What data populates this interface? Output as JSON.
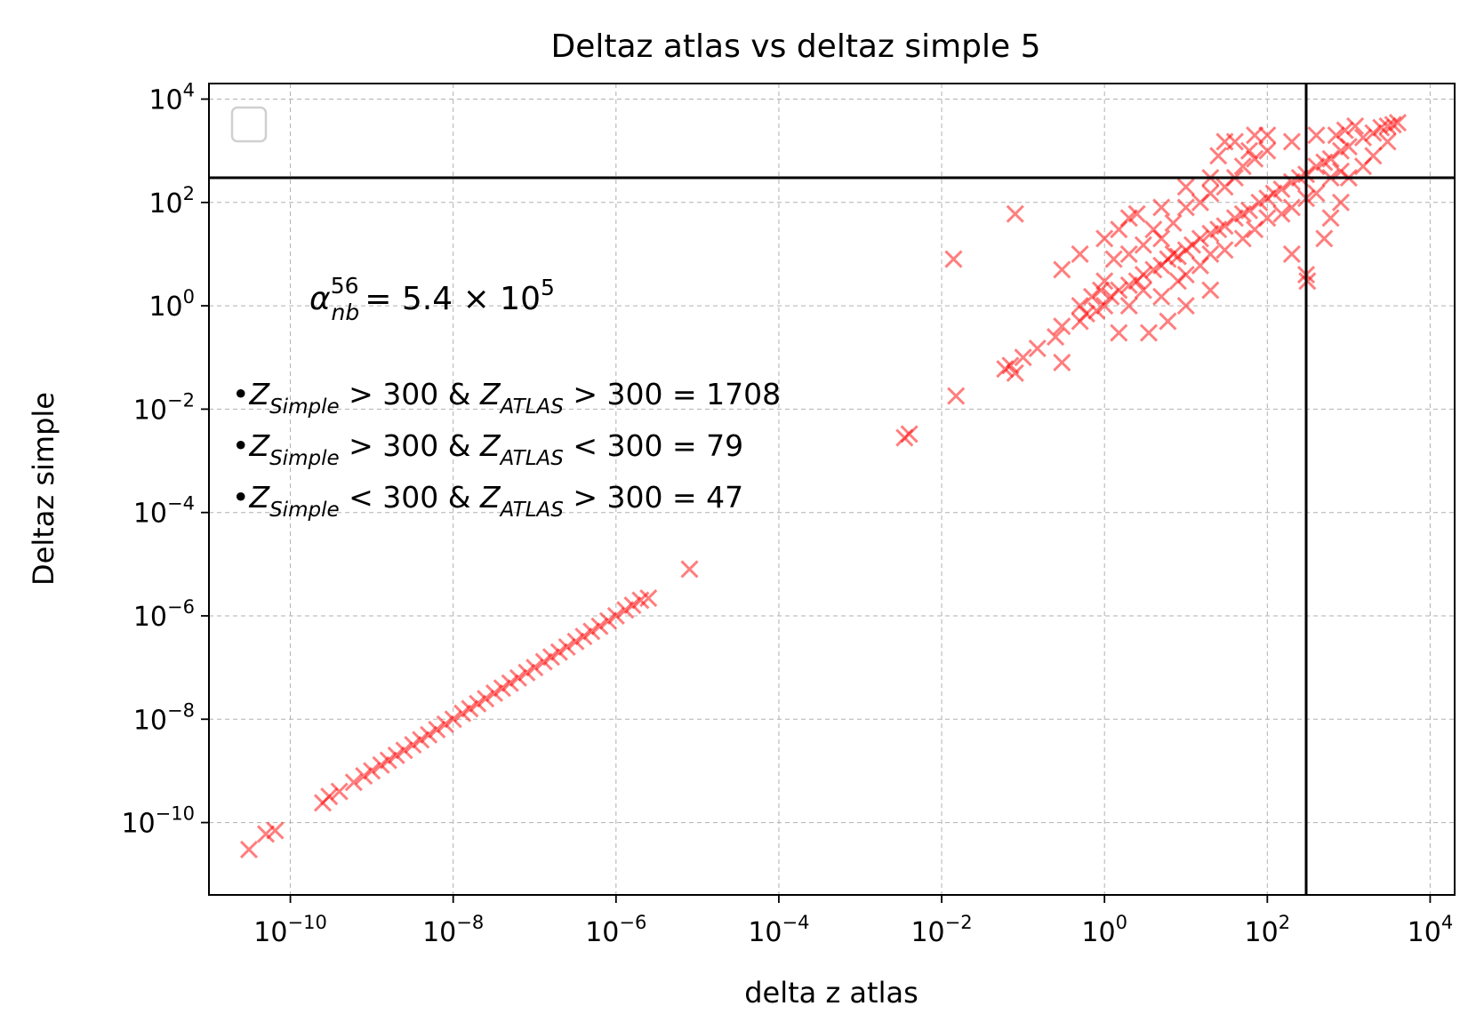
{
  "chart_data": {
    "type": "scatter",
    "title": "Deltaz atlas vs deltaz simple 5",
    "xlabel": "delta z atlas",
    "ylabel": "Deltaz simple",
    "xscale": "log",
    "yscale": "log",
    "xlim": [
      1e-11,
      20000
    ],
    "ylim": [
      3.98e-12,
      20000
    ],
    "x_tick_exponents": [
      -10,
      -8,
      -6,
      -4,
      -2,
      0,
      2,
      4
    ],
    "y_tick_exponents": [
      -10,
      -8,
      -6,
      -4,
      -2,
      0,
      2,
      4
    ],
    "x_tick_labels": [
      "10^-10",
      "10^-8",
      "10^-6",
      "10^-4",
      "10^-2",
      "10^0",
      "10^2",
      "10^4"
    ],
    "y_tick_labels": [
      "10^-10",
      "10^-8",
      "10^-6",
      "10^-4",
      "10^-2",
      "10^0",
      "10^2",
      "10^4"
    ],
    "grid": true,
    "legend": "top-left (empty)",
    "marker": "x",
    "marker_color": "#ff0000",
    "marker_alpha": 0.5,
    "reference_lines": {
      "horizontal_y": 300,
      "vertical_x": 300,
      "color": "#000000"
    },
    "annotations": {
      "alpha": {
        "symbol": "α",
        "sup": "56",
        "sub": "nb",
        "value_text": "= 5.4 × 10",
        "exp": "5"
      },
      "counts": [
        {
          "bullet": "•",
          "zA": "Z",
          "zA_sub": "Simple",
          "op1": ">",
          "v1": "300",
          "amp": "&",
          "zB": "Z",
          "zB_sub": "ATLAS",
          "op2": ">",
          "v2": "300",
          "eq": "=",
          "count": "1708"
        },
        {
          "bullet": "•",
          "zA": "Z",
          "zA_sub": "Simple",
          "op1": ">",
          "v1": "300",
          "amp": "&",
          "zB": "Z",
          "zB_sub": "ATLAS",
          "op2": "<",
          "v2": "300",
          "eq": "=",
          "count": "79"
        },
        {
          "bullet": "•",
          "zA": "Z",
          "zA_sub": "Simple",
          "op1": "<",
          "v1": "300",
          "amp": "&",
          "zB": "Z",
          "zB_sub": "ATLAS",
          "op2": ">",
          "v2": "300",
          "eq": "=",
          "count": "47"
        }
      ]
    },
    "series": [
      {
        "marker": "x",
        "points": [
          [
            3.1e-11,
            3e-11
          ],
          [
            5e-11,
            6e-11
          ],
          [
            6.5e-11,
            7e-11
          ],
          [
            2.5e-10,
            2.4e-10
          ],
          [
            3e-10,
            3.2e-10
          ],
          [
            4e-10,
            4e-10
          ],
          [
            6e-10,
            6e-10
          ],
          [
            8e-10,
            8e-10
          ],
          [
            1e-09,
            1e-09
          ],
          [
            1.3e-09,
            1.3e-09
          ],
          [
            1.6e-09,
            1.6e-09
          ],
          [
            2e-09,
            2e-09
          ],
          [
            2.5e-09,
            2.5e-09
          ],
          [
            3.2e-09,
            3.2e-09
          ],
          [
            4e-09,
            4e-09
          ],
          [
            5e-09,
            5e-09
          ],
          [
            6.3e-09,
            6.3e-09
          ],
          [
            8e-09,
            8e-09
          ],
          [
            1e-08,
            1e-08
          ],
          [
            1.3e-08,
            1.3e-08
          ],
          [
            1.6e-08,
            1.6e-08
          ],
          [
            2e-08,
            2e-08
          ],
          [
            2.5e-08,
            2.5e-08
          ],
          [
            3.2e-08,
            3.2e-08
          ],
          [
            4e-08,
            4e-08
          ],
          [
            5e-08,
            5e-08
          ],
          [
            6.3e-08,
            6.3e-08
          ],
          [
            8e-08,
            8e-08
          ],
          [
            1e-07,
            1e-07
          ],
          [
            1.3e-07,
            1.3e-07
          ],
          [
            1.6e-07,
            1.6e-07
          ],
          [
            2e-07,
            2e-07
          ],
          [
            2.5e-07,
            2.5e-07
          ],
          [
            3.2e-07,
            3.2e-07
          ],
          [
            4e-07,
            4e-07
          ],
          [
            5e-07,
            5e-07
          ],
          [
            6.3e-07,
            6.3e-07
          ],
          [
            8e-07,
            8e-07
          ],
          [
            1e-06,
            1e-06
          ],
          [
            1.3e-06,
            1.3e-06
          ],
          [
            1.6e-06,
            1.6e-06
          ],
          [
            2e-06,
            2e-06
          ],
          [
            2.5e-06,
            2.2e-06
          ],
          [
            8e-06,
            8e-06
          ],
          [
            0.0035,
            0.0028
          ],
          [
            0.004,
            0.0033
          ],
          [
            0.015,
            0.018
          ],
          [
            0.014,
            8.0
          ],
          [
            0.06,
            0.06
          ],
          [
            0.07,
            0.07
          ],
          [
            0.08,
            0.05
          ],
          [
            0.1,
            0.1
          ],
          [
            0.15,
            0.15
          ],
          [
            0.08,
            60
          ],
          [
            0.25,
            0.25
          ],
          [
            0.3,
            0.4
          ],
          [
            0.5,
            0.5
          ],
          [
            0.6,
            0.7
          ],
          [
            0.8,
            0.8
          ],
          [
            1.0,
            1.0
          ],
          [
            1.2,
            1.5
          ],
          [
            1.5,
            2.0
          ],
          [
            2.0,
            2.5
          ],
          [
            2.5,
            3.0
          ],
          [
            3.0,
            4.0
          ],
          [
            3.5,
            0.3
          ],
          [
            4.0,
            5.0
          ],
          [
            5.0,
            6.0
          ],
          [
            6.0,
            8.0
          ],
          [
            7.0,
            10
          ],
          [
            8.0,
            9.0
          ],
          [
            10,
            12
          ],
          [
            12,
            15
          ],
          [
            15,
            20
          ],
          [
            20,
            25
          ],
          [
            25,
            30
          ],
          [
            30,
            35
          ],
          [
            40,
            50
          ],
          [
            50,
            60
          ],
          [
            60,
            70
          ],
          [
            80,
            100
          ],
          [
            100,
            120
          ],
          [
            120,
            150
          ],
          [
            150,
            180
          ],
          [
            200,
            250
          ],
          [
            250,
            300
          ],
          [
            300,
            350
          ],
          [
            400,
            500
          ],
          [
            500,
            600
          ],
          [
            600,
            700
          ],
          [
            800,
            1000
          ],
          [
            1000,
            1200
          ],
          [
            1500,
            1800
          ],
          [
            2000,
            2200
          ],
          [
            2500,
            2800
          ],
          [
            3000,
            3000
          ],
          [
            3500,
            3200
          ],
          [
            4000,
            3500
          ],
          [
            1.0,
            3.0
          ],
          [
            1.3,
            8.0
          ],
          [
            2.0,
            10
          ],
          [
            3.0,
            15
          ],
          [
            4.0,
            30
          ],
          [
            5.0,
            20
          ],
          [
            7.0,
            40
          ],
          [
            10,
            80
          ],
          [
            15,
            100
          ],
          [
            20,
            150
          ],
          [
            30,
            200
          ],
          [
            40,
            300
          ],
          [
            50,
            500
          ],
          [
            70,
            700
          ],
          [
            100,
            1000
          ],
          [
            5.0,
            1.5
          ],
          [
            8.0,
            3.0
          ],
          [
            10,
            4.0
          ],
          [
            15,
            6.0
          ],
          [
            20,
            10
          ],
          [
            30,
            12
          ],
          [
            50,
            20
          ],
          [
            70,
            30
          ],
          [
            100,
            50
          ],
          [
            150,
            60
          ],
          [
            200,
            80
          ],
          [
            300,
            120
          ],
          [
            400,
            150
          ],
          [
            600,
            300
          ],
          [
            800,
            400
          ],
          [
            0.3,
            0.08
          ],
          [
            0.5,
            1.0
          ],
          [
            0.7,
            1.5
          ],
          [
            2.0,
            1.0
          ],
          [
            3.0,
            2.0
          ],
          [
            1.5,
            0.3
          ],
          [
            0.9,
            2.0
          ],
          [
            6.0,
            0.5
          ],
          [
            10,
            1.0
          ],
          [
            20,
            2.0
          ],
          [
            300,
            4.0
          ],
          [
            310,
            3.0
          ],
          [
            1.5,
            30
          ],
          [
            2.5,
            60
          ],
          [
            5.0,
            80
          ],
          [
            10,
            200
          ],
          [
            20,
            300
          ],
          [
            25,
            800
          ],
          [
            40,
            1500
          ],
          [
            60,
            1000
          ],
          [
            30,
            1500
          ],
          [
            70,
            2000
          ],
          [
            100,
            2000
          ],
          [
            200,
            1500
          ],
          [
            400,
            2000
          ],
          [
            2.0,
            50
          ],
          [
            0.5,
            10
          ],
          [
            0.3,
            5.0
          ],
          [
            1.0,
            20
          ],
          [
            200,
            10
          ],
          [
            500,
            20
          ],
          [
            600,
            50
          ],
          [
            800,
            100
          ],
          [
            1000,
            300
          ],
          [
            1500,
            500
          ],
          [
            2000,
            800
          ],
          [
            3000,
            1500
          ],
          [
            1200,
            3000
          ],
          [
            900,
            2500
          ],
          [
            700,
            2000
          ]
        ]
      }
    ]
  }
}
